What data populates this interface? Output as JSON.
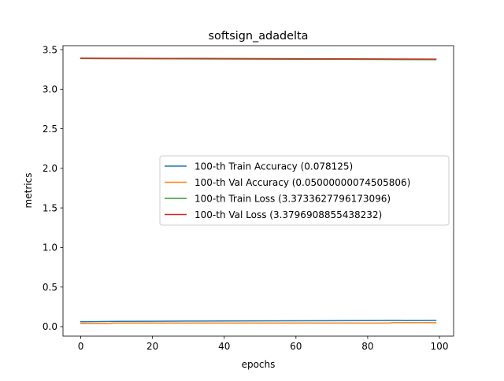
{
  "chart_data": {
    "type": "line",
    "title": "softsign_adadelta",
    "xlabel": "epochs",
    "ylabel": "metrics",
    "xlim": [
      -4.95,
      103.95
    ],
    "ylim": [
      -0.12,
      3.55
    ],
    "xticks": [
      0,
      20,
      40,
      60,
      80,
      100
    ],
    "yticks": [
      0.0,
      0.5,
      1.0,
      1.5,
      2.0,
      2.5,
      3.0,
      3.5
    ],
    "xtick_labels": [
      "0",
      "20",
      "40",
      "60",
      "80",
      "100"
    ],
    "ytick_labels": [
      "0.0",
      "0.5",
      "1.0",
      "1.5",
      "2.0",
      "2.5",
      "3.0",
      "3.5"
    ],
    "grid": false,
    "legend_position": "center-right",
    "series": [
      {
        "name": "100-th Train Accuracy (0.078125)",
        "color": "#1f77b4",
        "x": [
          0,
          10,
          20,
          30,
          40,
          50,
          60,
          70,
          80,
          87,
          90,
          99
        ],
        "y": [
          0.062,
          0.066,
          0.068,
          0.07,
          0.071,
          0.073,
          0.074,
          0.075,
          0.076,
          0.078,
          0.077,
          0.078
        ]
      },
      {
        "name": "100-th Val Accuracy (0.05000000074505806)",
        "color": "#ff7f0e",
        "x": [
          0,
          8,
          9,
          30,
          60,
          86,
          87,
          99
        ],
        "y": [
          0.04,
          0.04,
          0.045,
          0.045,
          0.045,
          0.045,
          0.05,
          0.05
        ]
      },
      {
        "name": "100-th Train Loss (3.3733627796173096)",
        "color": "#2ca02c",
        "x": [
          0,
          25,
          50,
          75,
          99
        ],
        "y": [
          3.387,
          3.384,
          3.38,
          3.377,
          3.373
        ]
      },
      {
        "name": "100-th Val Loss (3.3796908855438232)",
        "color": "#d62728",
        "x": [
          0,
          25,
          50,
          75,
          99
        ],
        "y": [
          3.392,
          3.389,
          3.386,
          3.383,
          3.38
        ]
      }
    ]
  }
}
